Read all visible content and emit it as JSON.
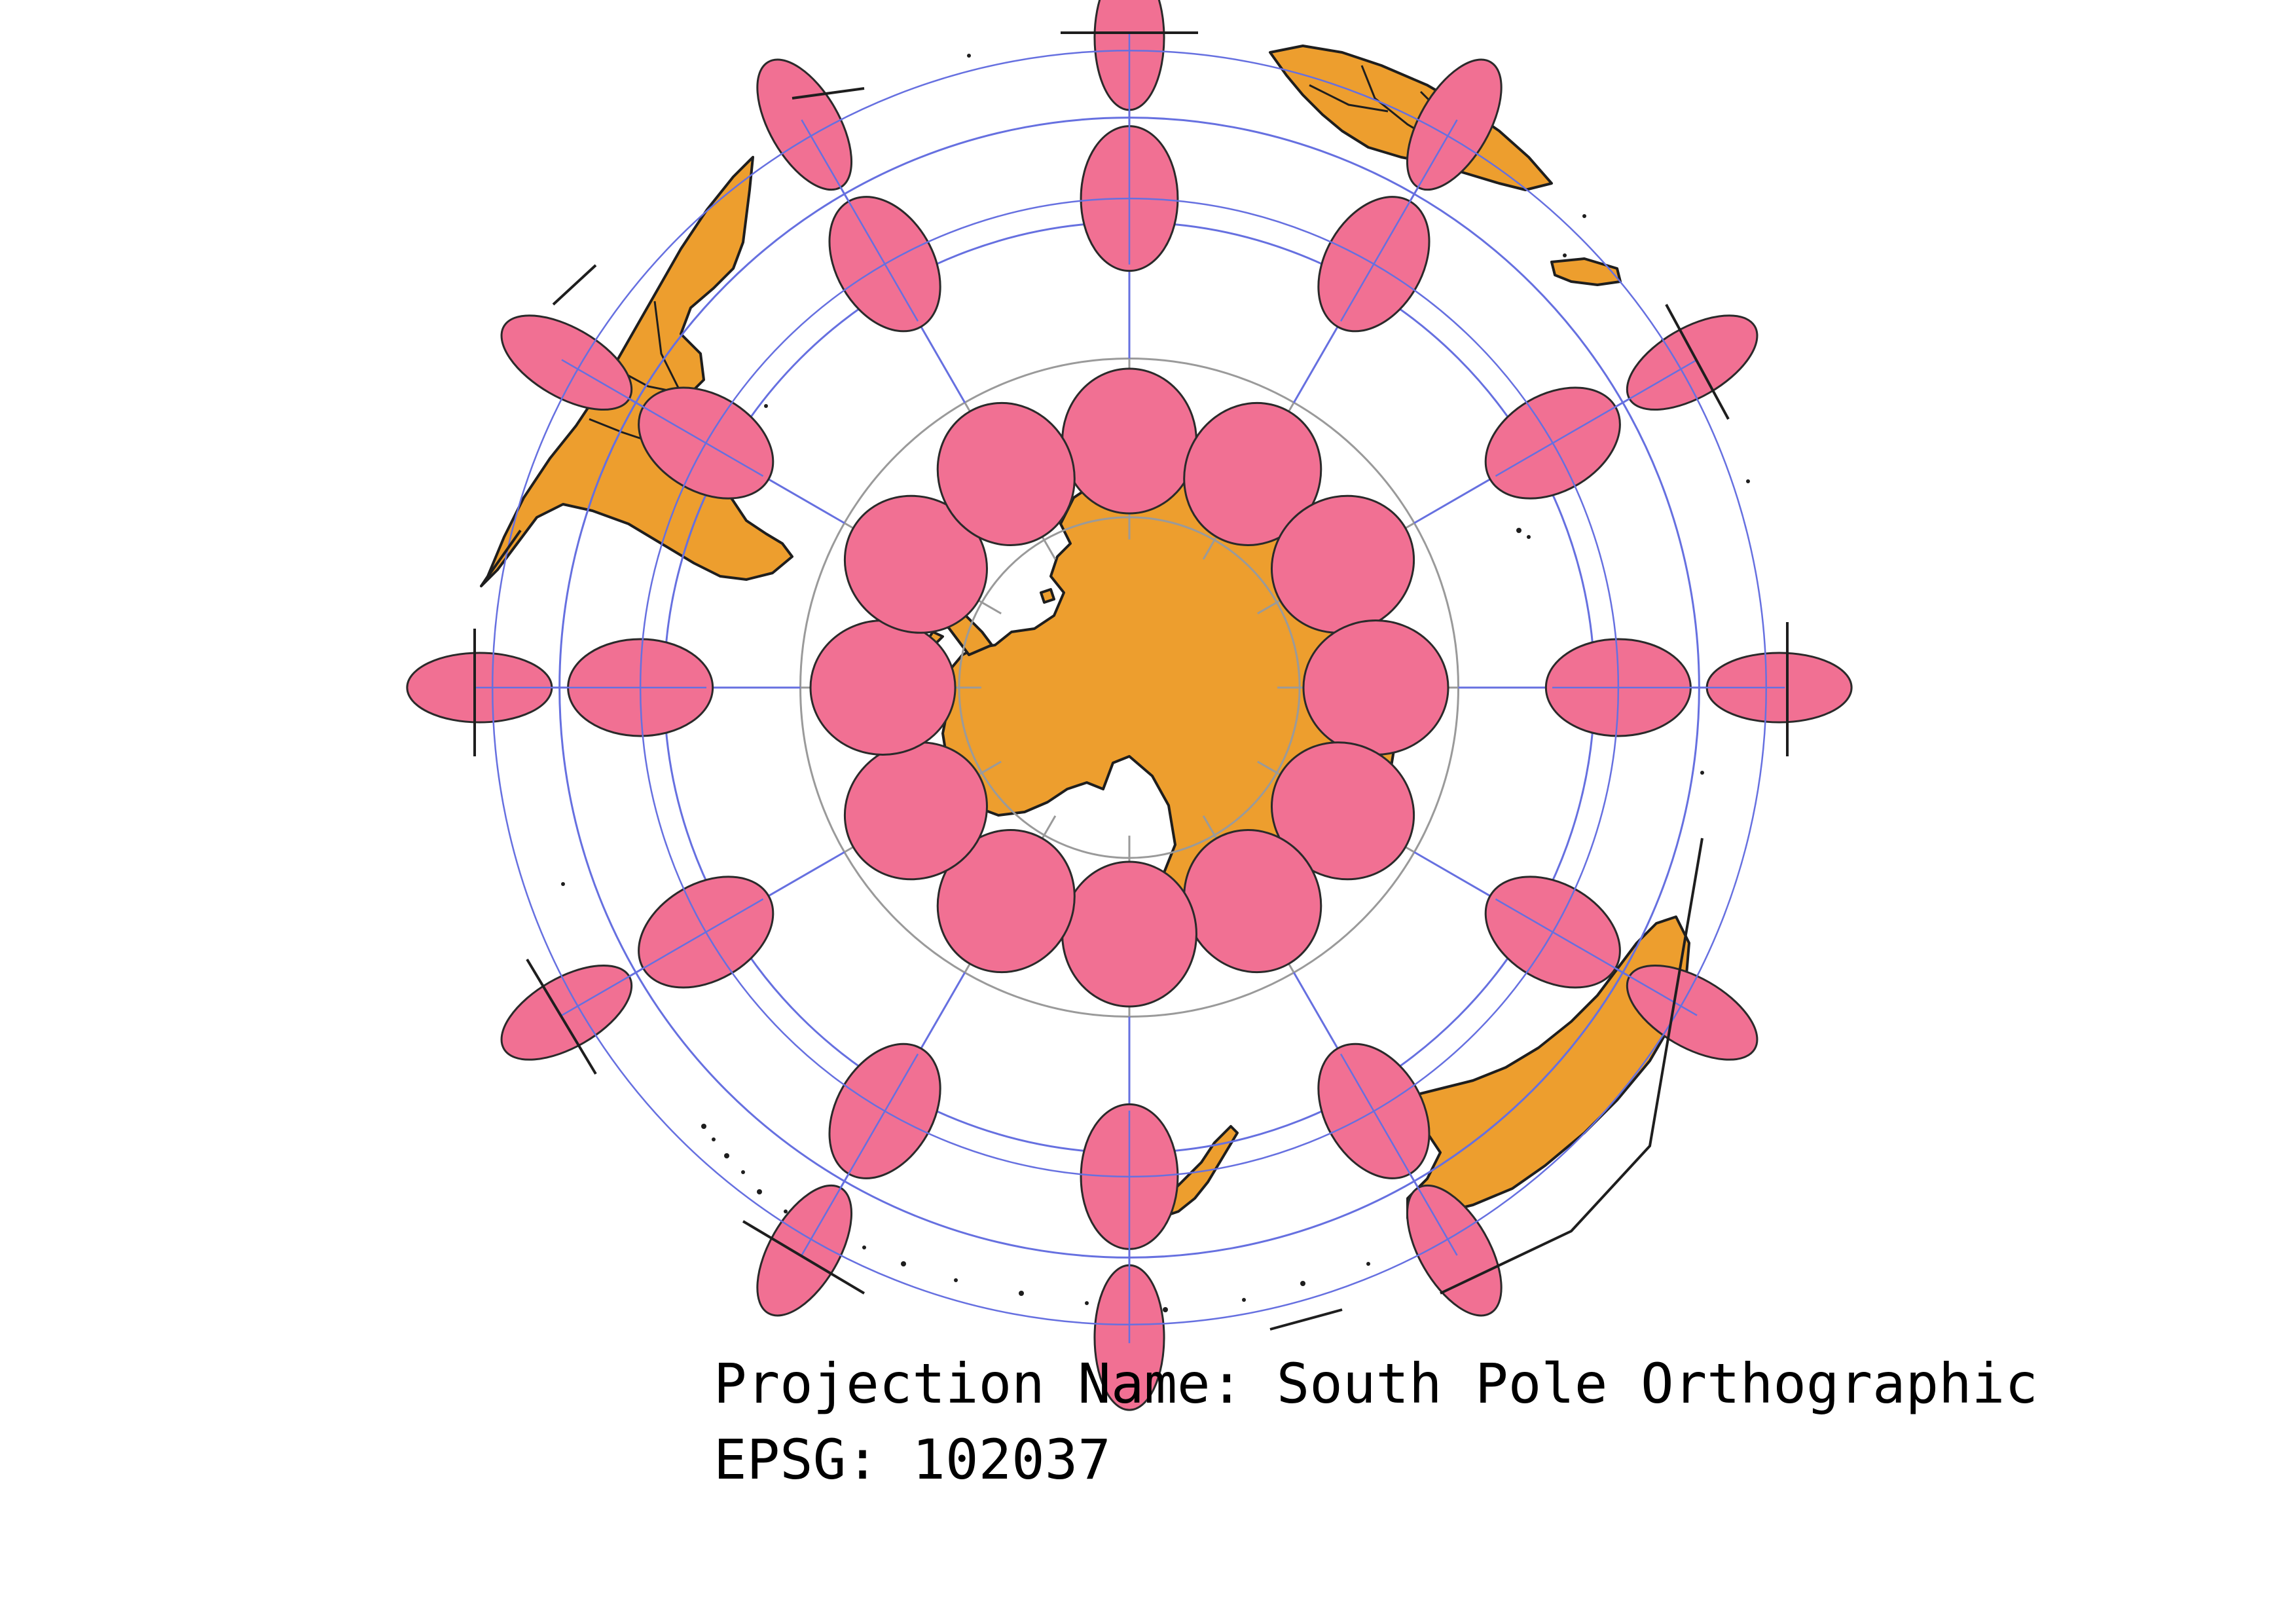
{
  "projection": {
    "name_line": "Projection Name: South Pole Orthographic",
    "epsg_line": "EPSG: 102037"
  },
  "map": {
    "type": "orthographic globe with Tissot indicatrices",
    "center": "South Pole",
    "landmasses": [
      "Antarctica",
      "South America",
      "Africa",
      "Australia",
      "New Zealand"
    ],
    "graticule": {
      "meridian_step_deg": 30,
      "parallels_deg": [
        -75,
        -60,
        -45,
        -30
      ]
    },
    "indicatrix_rings_lat_deg": [
      -70,
      -50,
      -30
    ],
    "indicatrix_meridians_deg": [
      0,
      30,
      60,
      90,
      120,
      150,
      180,
      210,
      240,
      270,
      300,
      330
    ],
    "colors": {
      "land": "#ed9e2e",
      "land_outline": "#1e1e1e",
      "indicatrix_fill": "#f17093",
      "indicatrix_outline": "#2a2a2a",
      "graticule_visible": "#6670e0",
      "graticule_under_land": "#9a9a9a",
      "background": "#ffffff"
    }
  }
}
